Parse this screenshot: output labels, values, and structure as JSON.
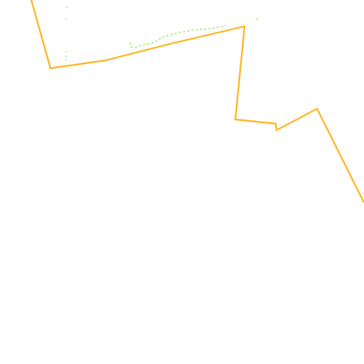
{
  "map": {
    "background_color": "#ffffff",
    "boundary": {
      "stroke_color": "#fdb825"
    },
    "trail": {
      "stroke_color": "#9bea7a"
    }
  }
}
